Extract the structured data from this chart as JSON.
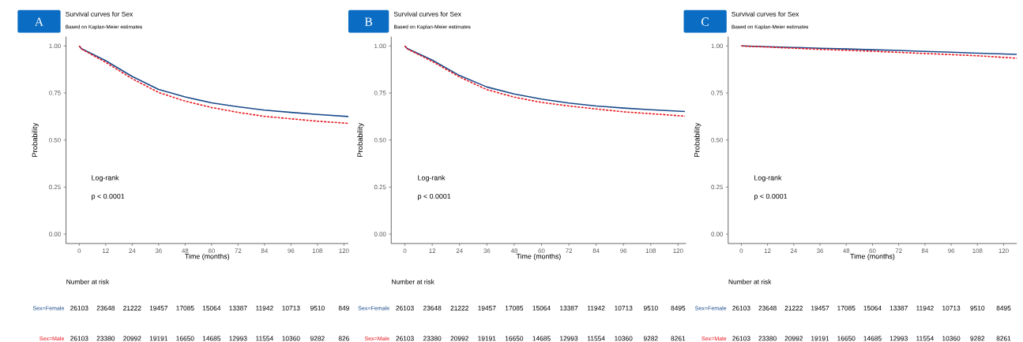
{
  "chart_data": [
    {
      "type": "line",
      "title": "Survival curves for Sex",
      "subtitle": "Based on Kaplan-Meier estimates",
      "xlabel": "Time (months)",
      "ylabel": "Probability",
      "x": [
        0,
        1,
        12,
        24,
        36,
        48,
        60,
        72,
        84,
        96,
        108,
        122
      ],
      "series": [
        {
          "name": "Sex=Female",
          "color": "#1a4a8a",
          "line_style": "solid",
          "values": [
            1.0,
            0.986,
            0.922,
            0.838,
            0.769,
            0.729,
            0.698,
            0.677,
            0.659,
            0.647,
            0.636,
            0.625
          ]
        },
        {
          "name": "Sex=Male",
          "color": "#e8141c",
          "line_style": "dashed",
          "values": [
            1.0,
            0.984,
            0.913,
            0.826,
            0.753,
            0.707,
            0.673,
            0.647,
            0.626,
            0.613,
            0.6,
            0.589
          ]
        }
      ],
      "xlim": [
        -6,
        122
      ],
      "ylim": [
        -0.05,
        1.05
      ],
      "xticks": [
        0,
        12,
        24,
        36,
        48,
        60,
        72,
        84,
        96,
        108,
        120
      ],
      "yticks": [
        {
          "value": 0,
          "label": "0.00"
        },
        {
          "value": 0.25,
          "label": "0.25"
        },
        {
          "value": 0.5,
          "label": "0.50"
        },
        {
          "value": 0.75,
          "label": "0.75"
        },
        {
          "value": 1,
          "label": "1.00"
        }
      ],
      "annotations": [
        "A",
        "Log-rank",
        "p < 0.0001",
        "Number at risk",
        "26103",
        "23648",
        "21222",
        "19457",
        "17085",
        "15064",
        "13387",
        "11942",
        "10713",
        "9510",
        "849",
        "26103",
        "23380",
        "20992",
        "19191",
        "16650",
        "14685",
        "12993",
        "11554",
        "10360",
        "9282",
        "826"
      ]
    },
    {
      "type": "line",
      "title": "Survival curves for Sex",
      "subtitle": "Based on Kaplan-Meier estimates",
      "xlabel": "Time (months)",
      "ylabel": "Probability",
      "x": [
        0,
        1,
        12,
        24,
        36,
        48,
        60,
        72,
        84,
        96,
        108,
        123
      ],
      "series": [
        {
          "name": "Sex=Female",
          "color": "#1a4a8a",
          "line_style": "solid",
          "values": [
            1.0,
            0.987,
            0.925,
            0.843,
            0.782,
            0.745,
            0.718,
            0.697,
            0.681,
            0.67,
            0.661,
            0.652
          ]
        },
        {
          "name": "Sex=Male",
          "color": "#e8141c",
          "line_style": "dashed",
          "values": [
            1.0,
            0.985,
            0.918,
            0.835,
            0.768,
            0.728,
            0.7,
            0.681,
            0.665,
            0.65,
            0.64,
            0.627
          ]
        }
      ],
      "xlim": [
        -6,
        123.5
      ],
      "ylim": [
        -0.05,
        1.05
      ],
      "xticks": [
        0,
        12,
        24,
        36,
        48,
        60,
        72,
        84,
        96,
        108,
        120
      ],
      "yticks": [
        {
          "value": 0,
          "label": "0.00"
        },
        {
          "value": 0.25,
          "label": "0.25"
        },
        {
          "value": 0.5,
          "label": "0.50"
        },
        {
          "value": 0.75,
          "label": "0.75"
        },
        {
          "value": 1,
          "label": "1.00"
        }
      ],
      "annotations": [
        "B",
        "Log-rank",
        "p < 0.0001",
        "Number at risk",
        "26103",
        "23648",
        "21222",
        "19457",
        "17085",
        "15064",
        "13387",
        "11942",
        "10713",
        "9510",
        "8495",
        "26103",
        "23380",
        "20992",
        "19191",
        "16650",
        "14685",
        "12993",
        "11554",
        "10360",
        "9282",
        "8261"
      ]
    },
    {
      "type": "line",
      "title": "Survival curves for Sex",
      "subtitle": "Based on Kaplan-Meier estimates",
      "xlabel": "Time (months)",
      "ylabel": "Probability",
      "x": [
        0,
        12,
        24,
        36,
        48,
        60,
        72,
        84,
        96,
        108,
        126
      ],
      "series": [
        {
          "name": "Sex=Female",
          "color": "#1a4a8a",
          "line_style": "solid",
          "values": [
            1.0,
            0.996,
            0.992,
            0.988,
            0.984,
            0.98,
            0.976,
            0.971,
            0.967,
            0.962,
            0.955
          ]
        },
        {
          "name": "Sex=Male",
          "color": "#e8141c",
          "line_style": "dashed",
          "values": [
            1.0,
            0.994,
            0.988,
            0.982,
            0.977,
            0.972,
            0.966,
            0.96,
            0.954,
            0.948,
            0.935
          ]
        }
      ],
      "xlim": [
        -6,
        126
      ],
      "ylim": [
        -0.05,
        1.05
      ],
      "xticks": [
        0,
        12,
        24,
        36,
        48,
        60,
        72,
        84,
        96,
        108,
        120
      ],
      "yticks": [
        {
          "value": 0,
          "label": "0.00"
        },
        {
          "value": 0.25,
          "label": "0.25"
        },
        {
          "value": 0.5,
          "label": "0.50"
        },
        {
          "value": 0.75,
          "label": "0.75"
        },
        {
          "value": 1,
          "label": "1.00"
        }
      ],
      "annotations": [
        "C",
        "Log-rank",
        "p < 0.0001",
        "Number at risk",
        "26103",
        "23648",
        "21222",
        "19457",
        "17085",
        "15064",
        "13387",
        "11942",
        "10713",
        "9510",
        "8495",
        "26103",
        "23380",
        "20992",
        "19191",
        "16650",
        "14685",
        "12993",
        "11554",
        "10360",
        "9282",
        "8261"
      ]
    }
  ]
}
